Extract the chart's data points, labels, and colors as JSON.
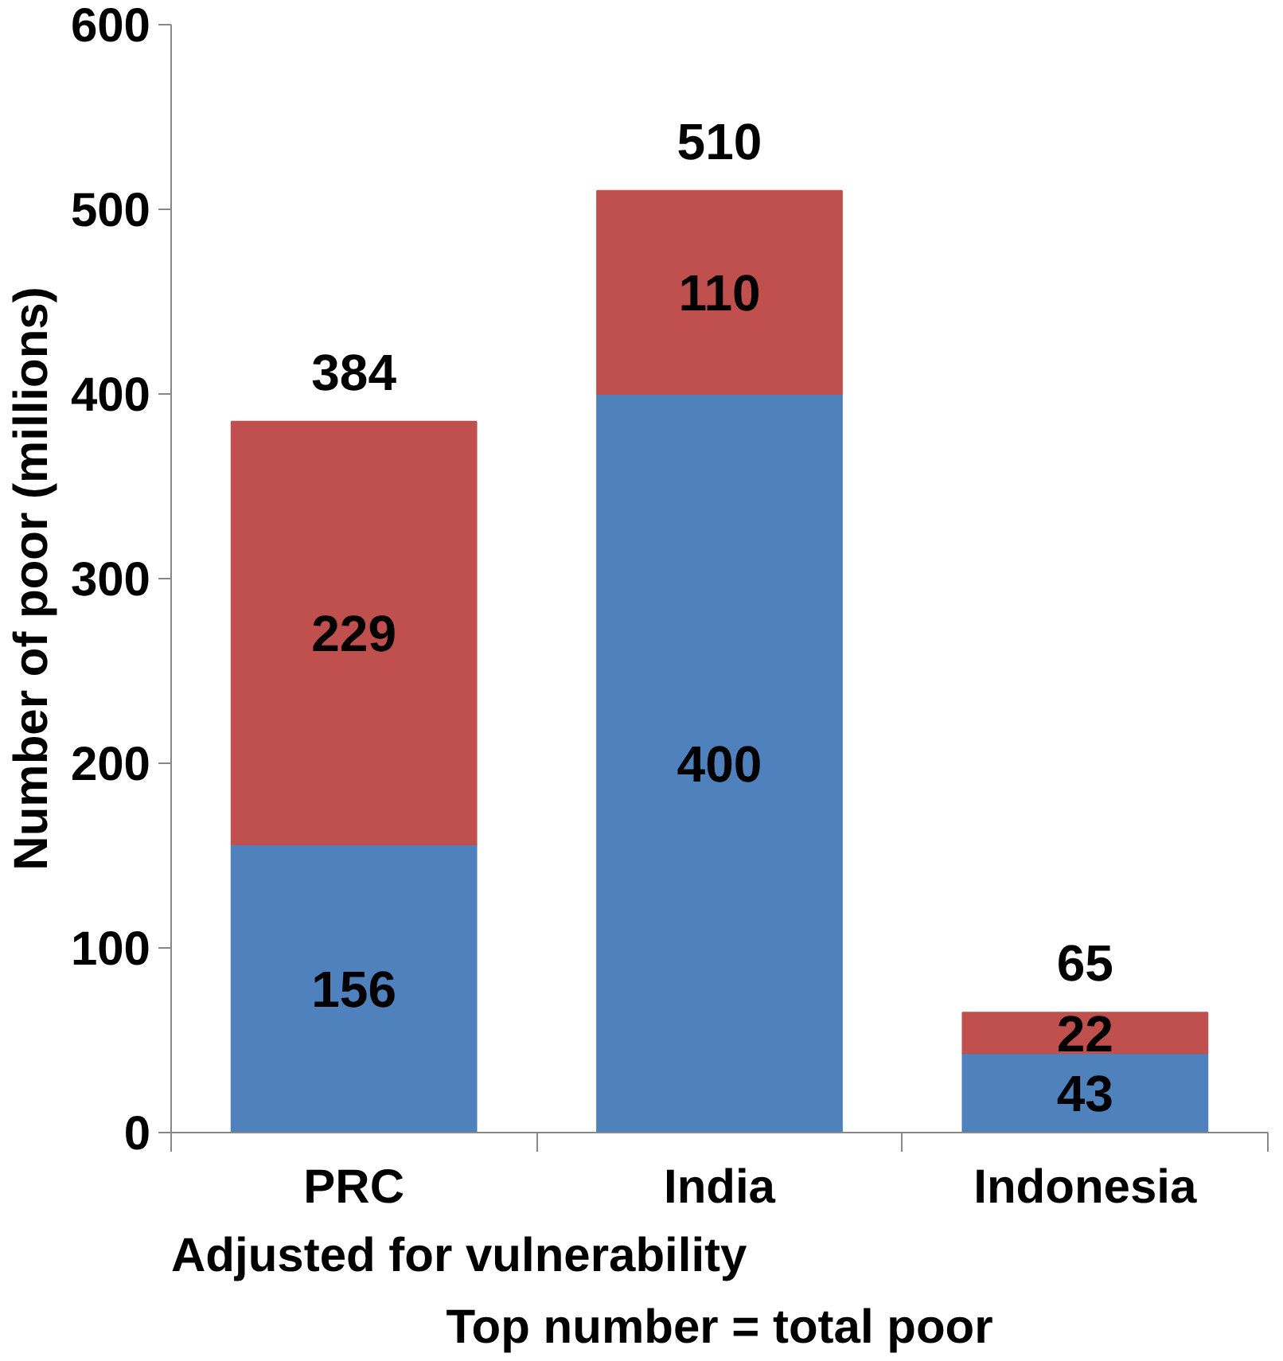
{
  "chart_data": {
    "type": "bar",
    "stacked": true,
    "categories": [
      "PRC",
      "India",
      "Indonesia"
    ],
    "series": [
      {
        "color": "#4f81bd",
        "values": [
          156,
          400,
          43
        ]
      },
      {
        "color": "#c0504d",
        "values": [
          229,
          110,
          22
        ]
      }
    ],
    "totals": [
      "384",
      "510",
      "65"
    ],
    "data_labels": true,
    "ylabel": "Number of poor (millions)",
    "ylim": [
      0,
      600
    ],
    "yticks": [
      0,
      100,
      200,
      300,
      400,
      500,
      600
    ],
    "grid": false,
    "annotations": [
      "Adjusted for vulnerability",
      "Top number = total poor"
    ]
  }
}
